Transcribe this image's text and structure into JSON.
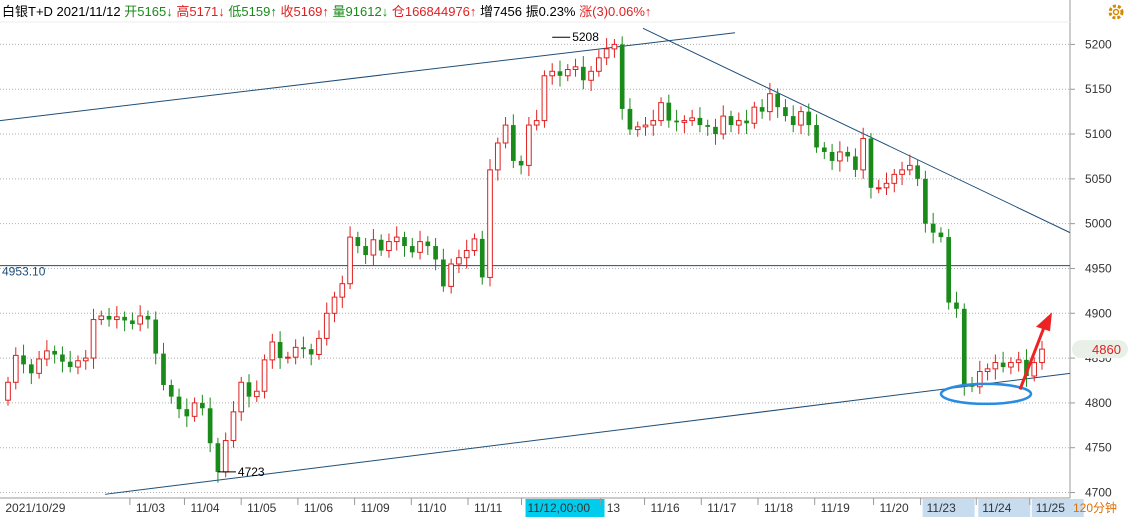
{
  "header": {
    "symbol": "白银T+D",
    "date": "2021/11/12",
    "open_label": "开",
    "open_value": "5165↓",
    "high_label": "高",
    "high_value": "5171↓",
    "low_label": "低",
    "low_value": "5159↑",
    "close_label": "收",
    "close_value": "5169↑",
    "volume_label": "量",
    "volume_value": "91612↓",
    "oi_label": "仓",
    "oi_value": "166844976↑",
    "inc_label": "增",
    "inc_value": "7456",
    "amp_label": "振",
    "amp_value": "0.23%",
    "chg_label": "涨",
    "chg_value": "(3)0.06%↑"
  },
  "icons": {
    "settings": "gear-icon"
  },
  "colors": {
    "up": "#e02020",
    "down": "#1a8a1a",
    "trend": "#1f4e79",
    "highlight_cursor": "#00ccee",
    "circle": "#2a8ce0",
    "arrow": "#ee2222"
  },
  "labels": {
    "level_line": "4953.10",
    "peak": "5208",
    "trough": "4723",
    "last_price": "4860",
    "period": "120分钟"
  },
  "chart_data": {
    "type": "candlestick",
    "y_ticks": [
      4700,
      4750,
      4800,
      4850,
      4900,
      4950,
      5000,
      5050,
      5100,
      5150,
      5200
    ],
    "ylim": [
      4695,
      5225
    ],
    "x_ticks": [
      "2021/10/29",
      "11/03",
      "11/04",
      "11/05",
      "11/06",
      "11/09",
      "11/10",
      "11/11",
      "11/12,00:00",
      "13",
      "11/16",
      "11/17",
      "11/18",
      "11/19",
      "11/20",
      "11/23",
      "11/24",
      "11/25"
    ],
    "x_ticks_highlighted": [
      "11/12,00:00",
      "11/23",
      "11/24",
      "11/25"
    ],
    "horizontal_level": 4953.1,
    "series": [
      {
        "c": [
          4853,
          4843,
          4833,
          4849,
          4858,
          4854,
          4846,
          4840,
          4847,
          4850,
          4893,
          4897,
          4893,
          4896,
          4892,
          4888,
          4897,
          4893,
          4855,
          4820,
          4807,
          4793,
          4785,
          4800,
          4794,
          4755,
          4723,
          4758,
          4790,
          4823,
          4807,
          4813
        ],
        "o": [
          4823,
          4853,
          4843,
          4849,
          4848,
          4847,
          4852,
          4845,
          4840,
          4847,
          4850,
          4893,
          4897,
          4893,
          4896,
          4892,
          4888,
          4897,
          4893,
          4855,
          4820,
          4807,
          4793,
          4785,
          4800,
          4794,
          4755,
          4723,
          4758,
          4790,
          4823,
          4807
        ]
      }
    ],
    "peak_value": 5208,
    "trough_value": 4723,
    "last_price": 4860
  }
}
